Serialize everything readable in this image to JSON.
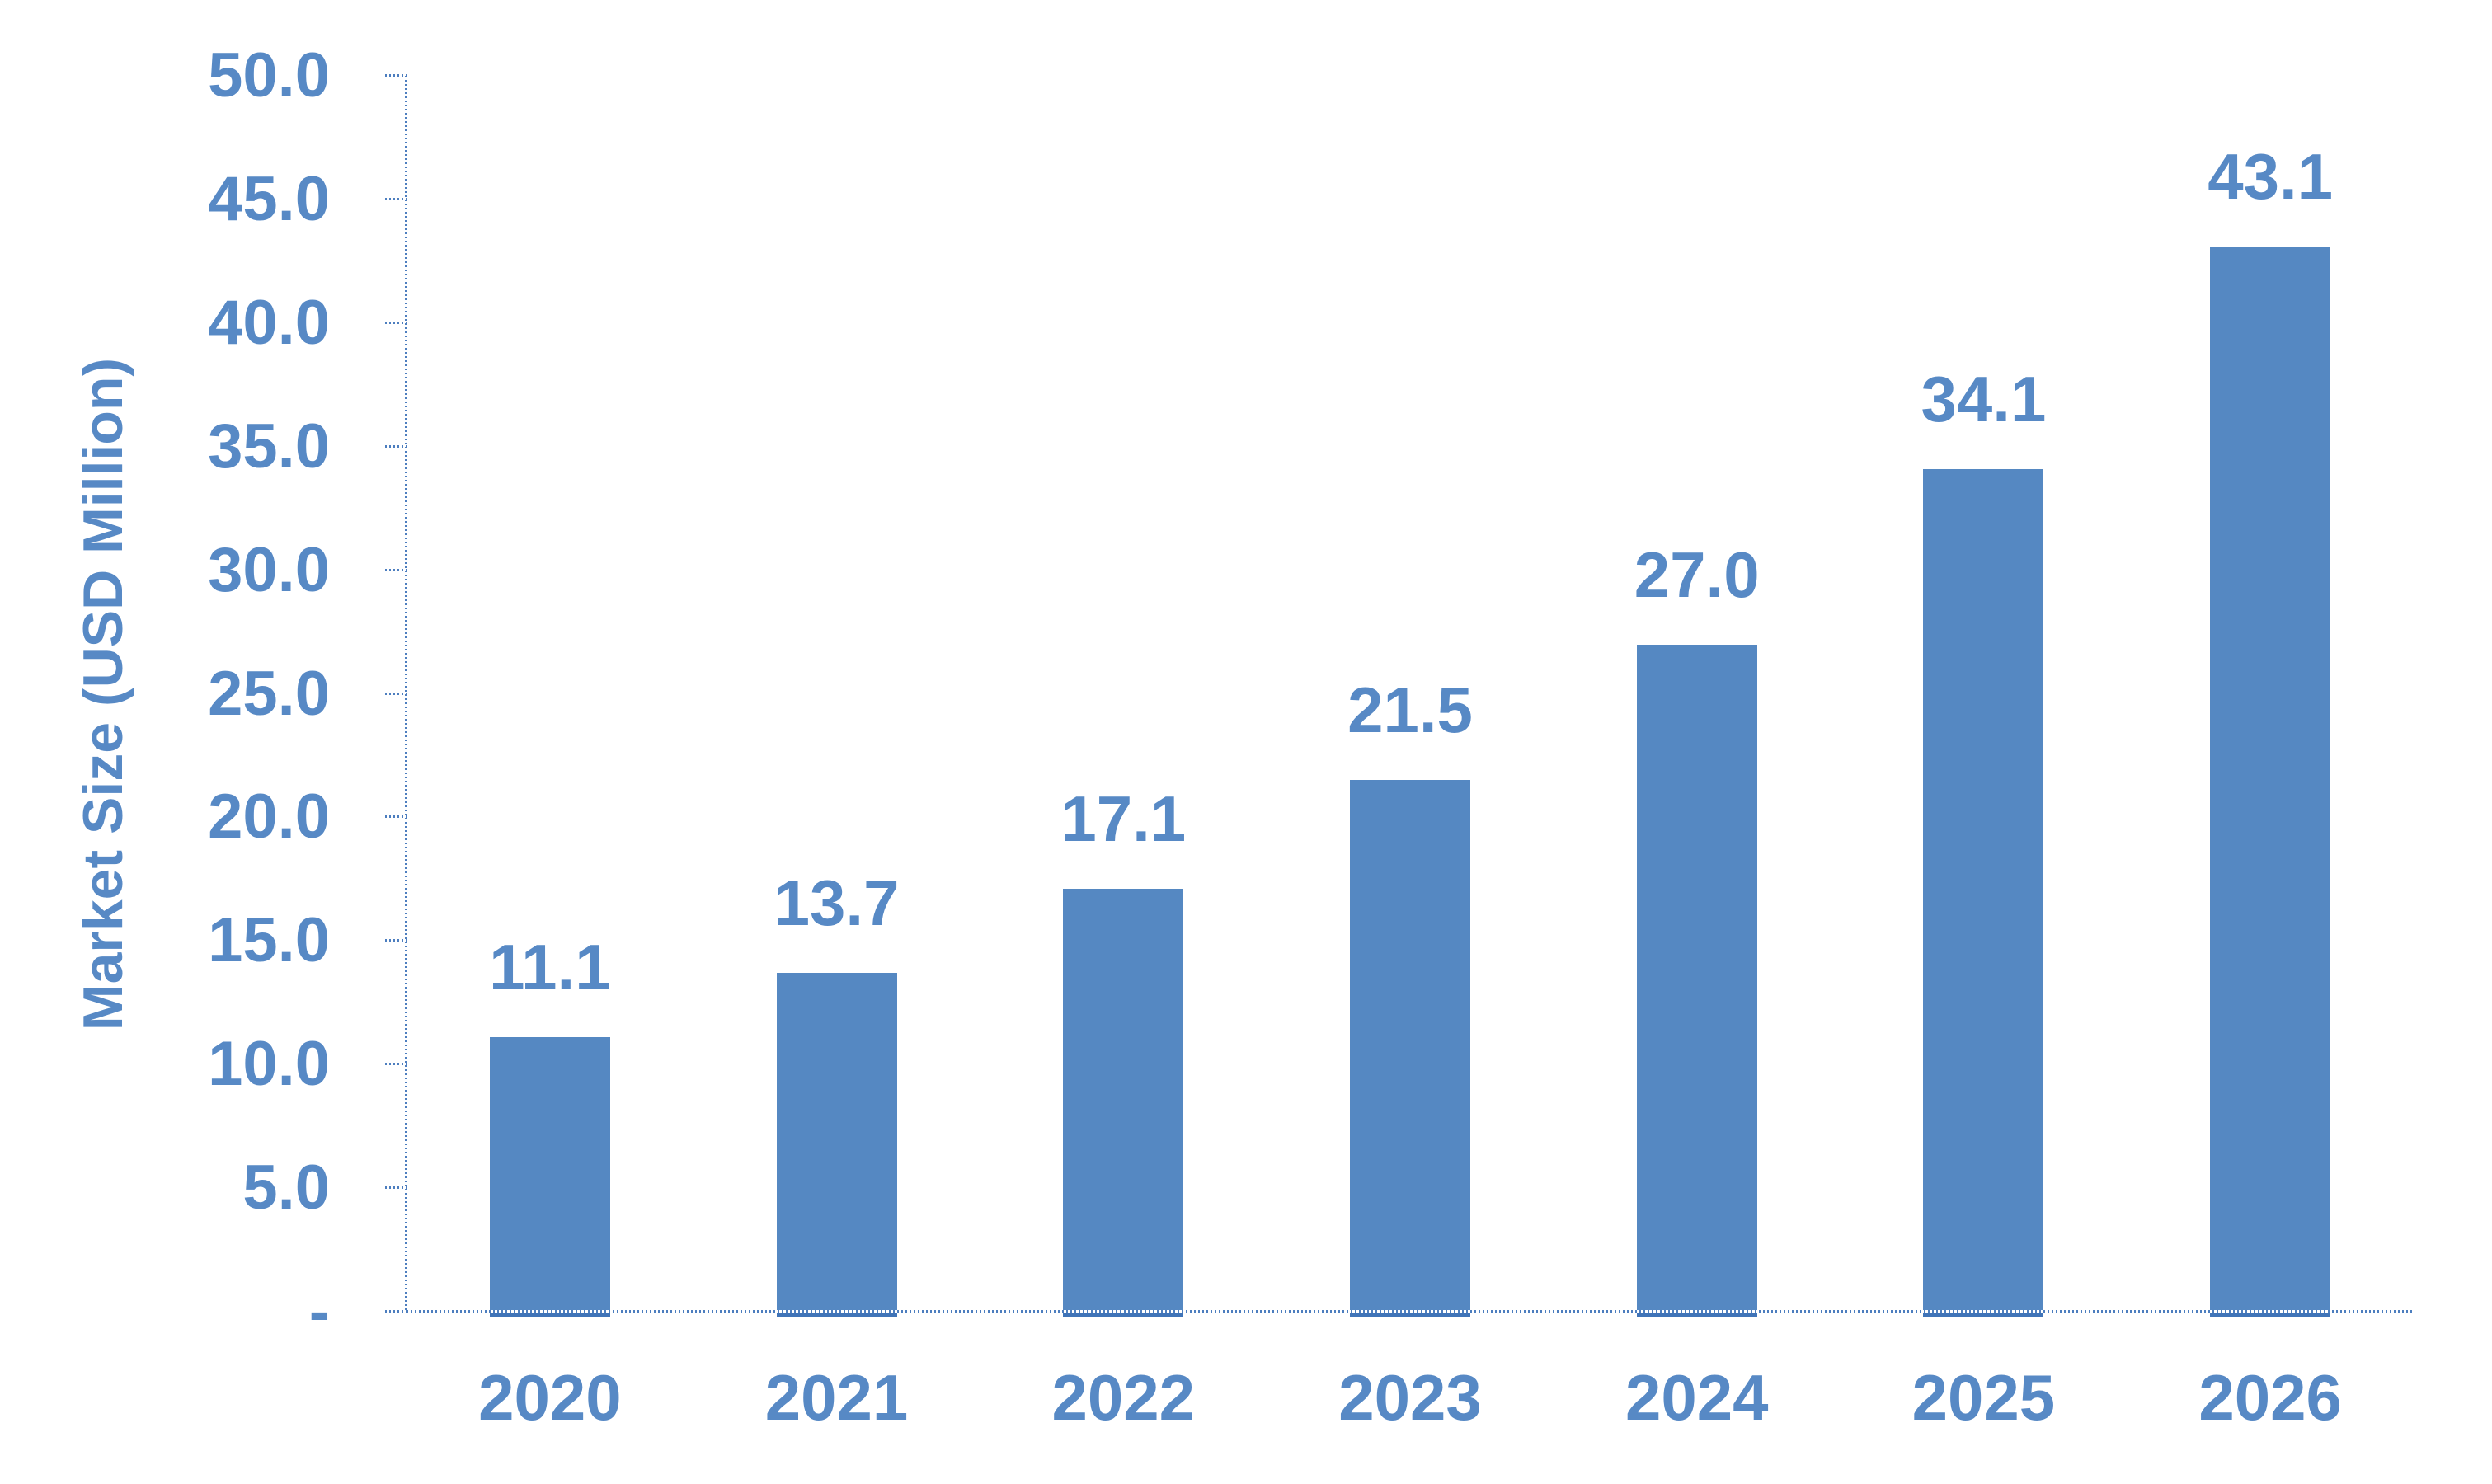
{
  "chart_data": {
    "type": "bar",
    "title": "",
    "categories": [
      "2020",
      "2021",
      "2022",
      "2023",
      "2024",
      "2025",
      "2026"
    ],
    "values": [
      11.1,
      13.7,
      17.1,
      21.5,
      27.0,
      34.1,
      43.1
    ],
    "data_labels": [
      "11.1",
      "13.7",
      "17.1",
      "21.5",
      "27.0",
      "34.1",
      "43.1"
    ],
    "xlabel": "",
    "ylabel": "Market Size (USD Million)",
    "ylim": [
      0,
      50
    ],
    "y_tick_step": 5,
    "y_tick_labels": [
      "-",
      "5.0",
      "10.0",
      "15.0",
      "20.0",
      "25.0",
      "30.0",
      "35.0",
      "40.0",
      "45.0",
      "50.0"
    ],
    "grid": false,
    "legend": "none",
    "colors": {
      "bar": "#5588C2",
      "text": "#5789C5",
      "axis": "#4D7EBF",
      "bar_underline": "#4074B8"
    }
  }
}
